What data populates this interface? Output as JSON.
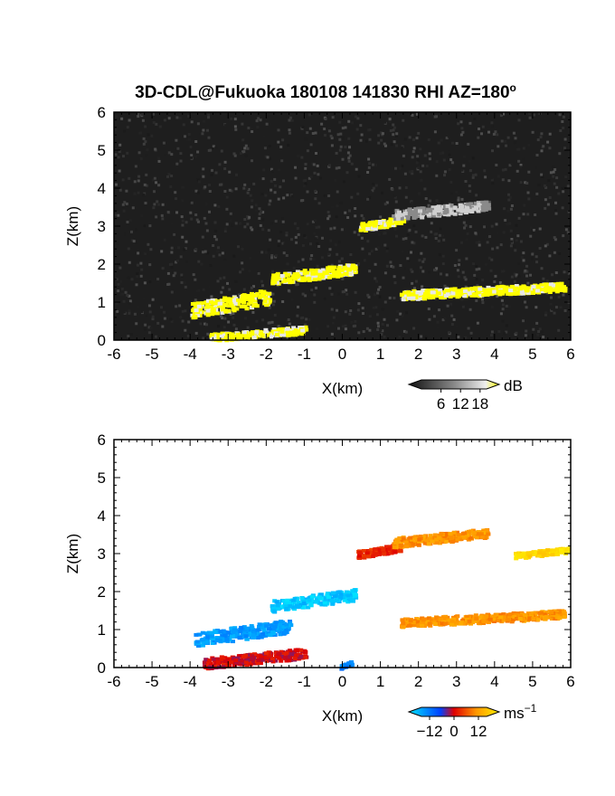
{
  "title": "3D-CDL@Fukuoka 180108 141830 RHI AZ=180",
  "title_degree": "o",
  "chart_data": [
    {
      "type": "heatmap",
      "name": "reflectivity",
      "xlabel": "X(km)",
      "ylabel": "Z(km)",
      "xlim": [
        -6,
        6
      ],
      "ylim": [
        0,
        6
      ],
      "xticks": [
        "-6",
        "-5",
        "-4",
        "-3",
        "-2",
        "-1",
        "0",
        "1",
        "2",
        "3",
        "4",
        "5",
        "6"
      ],
      "yticks": [
        "0",
        "1",
        "2",
        "3",
        "4",
        "5",
        "6"
      ],
      "background": "noise gray-black",
      "colorbar": {
        "unit": "dB",
        "ticks": [
          "6",
          "12",
          "18"
        ],
        "range": [
          0,
          20
        ]
      },
      "features": [
        {
          "x0": -4.0,
          "x1": -1.9,
          "z0": 0.6,
          "z1": 1.4,
          "value": 18
        },
        {
          "x0": -1.9,
          "x1": 0.3,
          "z0": 1.5,
          "z1": 2.05,
          "value": 18
        },
        {
          "x0": 0.4,
          "x1": 1.6,
          "z0": 2.9,
          "z1": 3.3,
          "value": 18
        },
        {
          "x0": 1.3,
          "x1": 3.8,
          "z0": 3.2,
          "z1": 3.7,
          "value": 10
        },
        {
          "x0": 1.5,
          "x1": 5.8,
          "z0": 1.1,
          "z1": 1.55,
          "value": 18
        },
        {
          "x0": -3.5,
          "x1": -1.0,
          "z0": 0.0,
          "z1": 0.4,
          "value": 18
        }
      ]
    },
    {
      "type": "heatmap",
      "name": "doppler-velocity",
      "xlabel": "X(km)",
      "ylabel": "Z(km)",
      "xlim": [
        -6,
        6
      ],
      "ylim": [
        0,
        6
      ],
      "xticks": [
        "-6",
        "-5",
        "-4",
        "-3",
        "-2",
        "-1",
        "0",
        "1",
        "2",
        "3",
        "4",
        "5",
        "6"
      ],
      "yticks": [
        "0",
        "1",
        "2",
        "3",
        "4",
        "5",
        "6"
      ],
      "colorbar": {
        "unit": "ms",
        "unit_exp": "−1",
        "ticks": [
          "−12",
          "0",
          "12"
        ],
        "range": [
          -16,
          16
        ]
      },
      "features": [
        {
          "x0": -3.9,
          "x1": -1.4,
          "z0": 0.6,
          "z1": 1.3,
          "value": -11
        },
        {
          "x0": -1.9,
          "x1": 0.3,
          "z0": 1.5,
          "z1": 2.1,
          "value": -14
        },
        {
          "x0": 0.3,
          "x1": 1.5,
          "z0": 2.9,
          "z1": 3.3,
          "value": 2
        },
        {
          "x0": 1.3,
          "x1": 3.8,
          "z0": 3.2,
          "z1": 3.7,
          "value": 8
        },
        {
          "x0": 1.5,
          "x1": 5.8,
          "z0": 1.1,
          "z1": 1.55,
          "value": 8
        },
        {
          "x0": 4.5,
          "x1": 5.9,
          "z0": 2.9,
          "z1": 3.2,
          "value": 14
        },
        {
          "x0": -3.7,
          "x1": -1.0,
          "z0": 0.0,
          "z1": 0.55,
          "value": 0
        },
        {
          "x0": -0.1,
          "x1": 0.2,
          "z0": 0.0,
          "z1": 0.2,
          "value": -9
        }
      ]
    }
  ]
}
